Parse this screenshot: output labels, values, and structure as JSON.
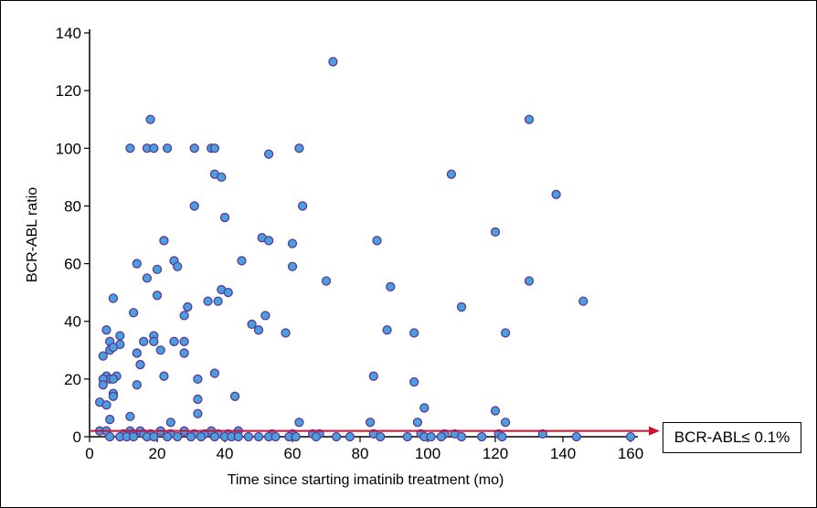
{
  "chart_data": {
    "type": "scatter",
    "xlabel": "Time since starting imatinib treatment (mo)",
    "ylabel": "BCR-ABL ratio",
    "xlim": [
      0,
      160
    ],
    "ylim": [
      0,
      140
    ],
    "x_ticks": [
      "0",
      "20",
      "40",
      "60",
      "80",
      "100",
      "120",
      "140",
      "160"
    ],
    "y_ticks": [
      "0",
      "20",
      "40",
      "60",
      "80",
      "100",
      "120",
      "140"
    ],
    "grid": false,
    "marker_color": "#4a9fdc",
    "marker_edge_color": "#5a3a9a",
    "threshold": {
      "y": 2,
      "label": "BCR-ABL≤ 0.1%",
      "color": "#cc1133"
    },
    "points": [
      [
        72,
        130
      ],
      [
        18,
        110
      ],
      [
        130,
        110
      ],
      [
        12,
        100
      ],
      [
        17,
        100
      ],
      [
        19,
        100
      ],
      [
        23,
        100
      ],
      [
        31,
        100
      ],
      [
        36,
        100
      ],
      [
        37,
        100
      ],
      [
        62,
        100
      ],
      [
        53,
        98
      ],
      [
        107,
        91
      ],
      [
        37,
        91
      ],
      [
        39,
        90
      ],
      [
        138,
        84
      ],
      [
        31,
        80
      ],
      [
        63,
        80
      ],
      [
        40,
        76
      ],
      [
        120,
        71
      ],
      [
        22,
        68
      ],
      [
        85,
        68
      ],
      [
        51,
        69
      ],
      [
        53,
        68
      ],
      [
        60,
        67
      ],
      [
        25,
        61
      ],
      [
        26,
        59
      ],
      [
        14,
        60
      ],
      [
        45,
        61
      ],
      [
        60,
        59
      ],
      [
        20,
        58
      ],
      [
        17,
        55
      ],
      [
        70,
        54
      ],
      [
        130,
        54
      ],
      [
        89,
        52
      ],
      [
        39,
        51
      ],
      [
        41,
        50
      ],
      [
        20,
        49
      ],
      [
        7,
        48
      ],
      [
        35,
        47
      ],
      [
        38,
        47
      ],
      [
        146,
        47
      ],
      [
        29,
        45
      ],
      [
        110,
        45
      ],
      [
        13,
        43
      ],
      [
        28,
        42
      ],
      [
        52,
        42
      ],
      [
        48,
        39
      ],
      [
        50,
        37
      ],
      [
        88,
        37
      ],
      [
        5,
        37
      ],
      [
        58,
        36
      ],
      [
        96,
        36
      ],
      [
        123,
        36
      ],
      [
        19,
        35
      ],
      [
        9,
        35
      ],
      [
        6,
        33
      ],
      [
        16,
        33
      ],
      [
        19,
        33
      ],
      [
        25,
        33
      ],
      [
        28,
        33
      ],
      [
        9,
        32
      ],
      [
        6,
        30
      ],
      [
        14,
        29
      ],
      [
        21,
        30
      ],
      [
        28,
        29
      ],
      [
        4,
        28
      ],
      [
        15,
        25
      ],
      [
        7,
        31
      ],
      [
        5,
        21
      ],
      [
        6,
        20
      ],
      [
        4,
        20
      ],
      [
        8,
        21
      ],
      [
        7,
        20
      ],
      [
        32,
        20
      ],
      [
        84,
        21
      ],
      [
        96,
        19
      ],
      [
        4,
        18
      ],
      [
        14,
        18
      ],
      [
        37,
        22
      ],
      [
        22,
        21
      ],
      [
        7,
        15
      ],
      [
        7,
        14
      ],
      [
        3,
        12
      ],
      [
        5,
        11
      ],
      [
        99,
        10
      ],
      [
        120,
        9
      ],
      [
        32,
        13
      ],
      [
        43,
        14
      ],
      [
        12,
        7
      ],
      [
        32,
        8
      ],
      [
        6,
        6
      ],
      [
        24,
        5
      ],
      [
        62,
        5
      ],
      [
        83,
        5
      ],
      [
        97,
        5
      ],
      [
        123,
        5
      ],
      [
        3,
        2
      ],
      [
        5,
        2
      ],
      [
        10,
        1
      ],
      [
        12,
        2
      ],
      [
        13,
        1
      ],
      [
        15,
        2
      ],
      [
        16,
        1
      ],
      [
        18,
        1
      ],
      [
        21,
        2
      ],
      [
        24,
        1
      ],
      [
        28,
        2
      ],
      [
        31,
        1
      ],
      [
        34,
        1
      ],
      [
        36,
        2
      ],
      [
        38,
        1
      ],
      [
        41,
        1
      ],
      [
        44,
        2
      ],
      [
        54,
        1
      ],
      [
        60,
        1
      ],
      [
        66,
        1
      ],
      [
        68,
        1
      ],
      [
        84,
        1
      ],
      [
        98,
        1
      ],
      [
        105,
        1
      ],
      [
        108,
        1
      ],
      [
        121,
        1
      ],
      [
        134,
        1
      ],
      [
        6,
        0
      ],
      [
        9,
        0
      ],
      [
        11,
        0
      ],
      [
        13,
        0
      ],
      [
        17,
        0
      ],
      [
        19,
        0
      ],
      [
        23,
        0
      ],
      [
        26,
        0
      ],
      [
        30,
        0
      ],
      [
        33,
        0
      ],
      [
        37,
        0
      ],
      [
        40,
        0
      ],
      [
        42,
        0
      ],
      [
        44,
        0
      ],
      [
        47,
        0
      ],
      [
        50,
        0
      ],
      [
        53,
        0
      ],
      [
        55,
        0
      ],
      [
        59,
        0
      ],
      [
        61,
        0
      ],
      [
        67,
        0
      ],
      [
        73,
        0
      ],
      [
        77,
        0
      ],
      [
        86,
        0
      ],
      [
        94,
        0
      ],
      [
        99,
        0
      ],
      [
        101,
        0
      ],
      [
        104,
        0
      ],
      [
        110,
        0
      ],
      [
        116,
        0
      ],
      [
        122,
        0
      ],
      [
        144,
        0
      ],
      [
        160,
        0
      ]
    ]
  }
}
